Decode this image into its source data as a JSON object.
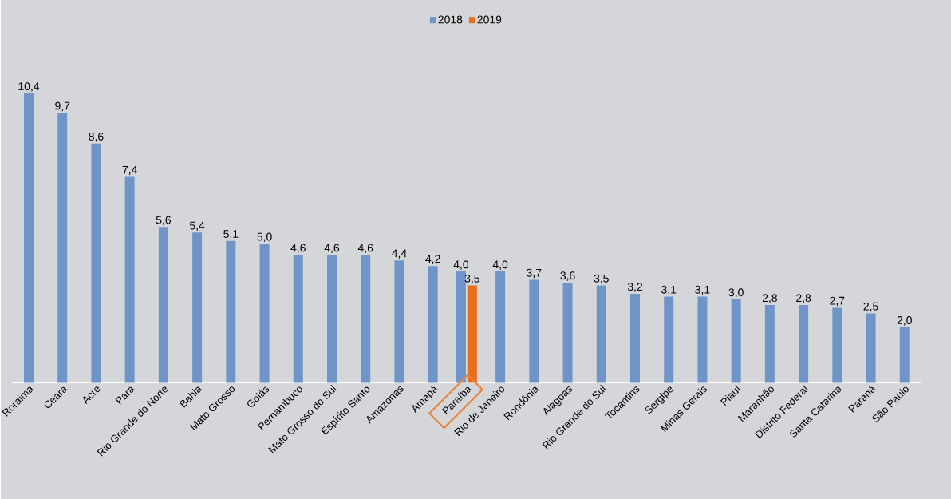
{
  "chart_data": {
    "type": "bar",
    "legend": "top",
    "categories": [
      "Roraima",
      "Ceará",
      "Acre",
      "Pará",
      "Rio Grande do Norte",
      "Bahia",
      "Mato Grosso",
      "Goiás",
      "Pernambuco",
      "Mato Grosso do Sul",
      "Espírito Santo",
      "Amazonas",
      "Amapá",
      "Paraíba",
      "Rio de Janeiro",
      "Rondônia",
      "Alagoas",
      "Rio Grande do Sul",
      "Tocantins",
      "Sergipe",
      "Minas Gerais",
      "Piauí",
      "Maranhão",
      "Distrito Federal",
      "Santa Catarina",
      "Paraná",
      "São Paulo"
    ],
    "series": [
      {
        "name": "2018",
        "color": "#6f95c8",
        "values": [
          10.4,
          9.7,
          8.6,
          7.4,
          5.6,
          5.4,
          5.1,
          5.0,
          4.6,
          4.6,
          4.6,
          4.4,
          4.2,
          4.0,
          4.0,
          3.7,
          3.6,
          3.5,
          3.2,
          3.1,
          3.1,
          3.0,
          2.8,
          2.8,
          2.7,
          2.5,
          2.0
        ],
        "value_labels": [
          "10,4",
          "9,7",
          "8,6",
          "7,4",
          "5,6",
          "5,4",
          "5,1",
          "5,0",
          "4,6",
          "4,6",
          "4,6",
          "4,4",
          "4,2",
          "4,0",
          "4,0",
          "3,7",
          "3,6",
          "3,5",
          "3,2",
          "3,1",
          "3,1",
          "3,0",
          "2,8",
          "2,8",
          "2,7",
          "2,5",
          "2,0"
        ]
      },
      {
        "name": "2019",
        "color": "#e8701a",
        "values": [
          null,
          null,
          null,
          null,
          null,
          null,
          null,
          null,
          null,
          null,
          null,
          null,
          null,
          3.5,
          null,
          null,
          null,
          null,
          null,
          null,
          null,
          null,
          null,
          null,
          null,
          null,
          null
        ],
        "value_labels": [
          null,
          null,
          null,
          null,
          null,
          null,
          null,
          null,
          null,
          null,
          null,
          null,
          null,
          "3,5",
          null,
          null,
          null,
          null,
          null,
          null,
          null,
          null,
          null,
          null,
          null,
          null,
          null
        ]
      }
    ]
  }
}
